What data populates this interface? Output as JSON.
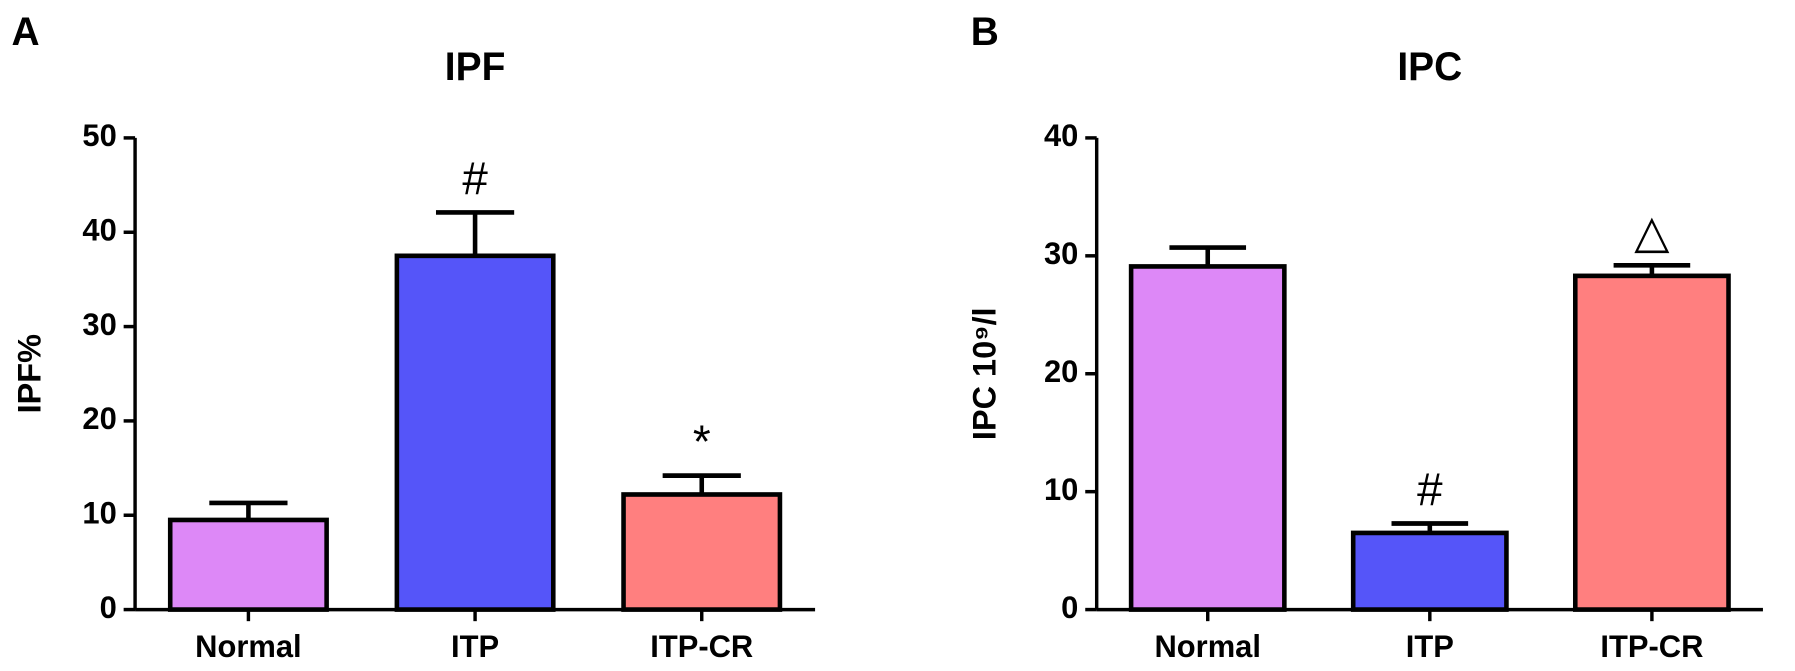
{
  "chart_data": [
    {
      "type": "bar",
      "panel": "A",
      "title": "IPF",
      "ylabel": "IPF%",
      "categories": [
        "Normal",
        "ITP",
        "ITP-CR"
      ],
      "values": [
        9.5,
        37.5,
        12.2
      ],
      "errors": [
        1.8,
        4.6,
        2.0
      ],
      "colors": [
        "#dd88f7",
        "#5555f9",
        "#ff7f7f"
      ],
      "annotations": [
        null,
        "#",
        "*"
      ],
      "ylim": [
        0,
        50
      ],
      "yticks": [
        0,
        10,
        20,
        30,
        40,
        50
      ]
    },
    {
      "type": "bar",
      "panel": "B",
      "title": "IPC",
      "ylabel": "IPC 10⁹/l",
      "categories": [
        "Normal",
        "ITP",
        "ITP-CR"
      ],
      "values": [
        29.1,
        6.5,
        28.3
      ],
      "errors": [
        1.6,
        0.8,
        0.9
      ],
      "colors": [
        "#dd88f7",
        "#5555f9",
        "#ff7f7f"
      ],
      "annotations": [
        null,
        "#",
        "△"
      ],
      "ylim": [
        0,
        40
      ],
      "yticks": [
        0,
        10,
        20,
        30,
        40
      ]
    }
  ]
}
